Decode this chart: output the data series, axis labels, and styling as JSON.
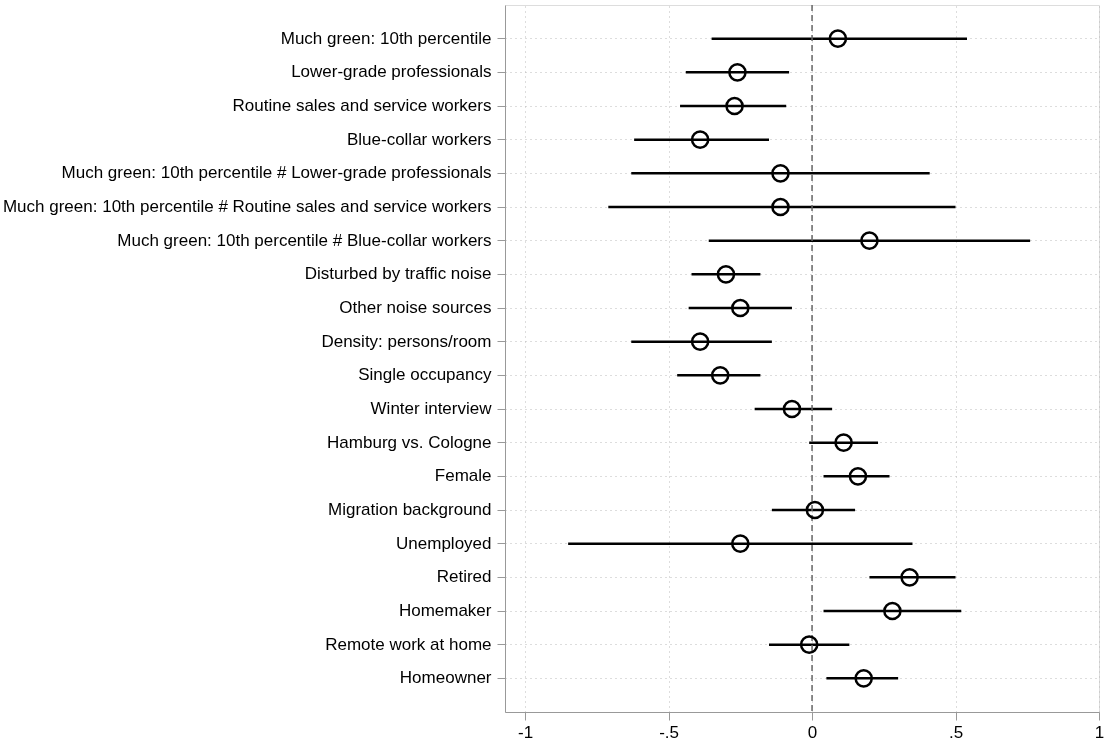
{
  "chart_data": {
    "type": "scatter",
    "orientation": "horizontal",
    "marker": "circle",
    "grid": true,
    "categories": [
      "Much green: 10th percentile",
      "Lower-grade professionals",
      "Routine sales and service workers",
      "Blue-collar workers",
      "Much green: 10th percentile # Lower-grade professionals",
      "Much green: 10th percentile # Routine sales and service workers",
      "Much green: 10th percentile # Blue-collar workers",
      "Disturbed by traffic noise",
      "Other noise sources",
      "Density: persons/room",
      "Single occupancy",
      "Winter interview",
      "Hamburg vs. Cologne",
      "Female",
      "Migration background",
      "Unemployed",
      "Retired",
      "Homemaker",
      "Remote work at home",
      "Homeowner"
    ],
    "values": [
      0.09,
      -0.26,
      -0.27,
      -0.39,
      -0.11,
      -0.11,
      0.2,
      -0.3,
      -0.25,
      -0.39,
      -0.32,
      -0.07,
      0.11,
      0.16,
      0.01,
      -0.25,
      0.34,
      0.28,
      -0.01,
      0.18
    ],
    "errors": [
      [
        -0.35,
        0.54
      ],
      [
        -0.44,
        -0.08
      ],
      [
        -0.46,
        -0.09
      ],
      [
        -0.62,
        -0.15
      ],
      [
        -0.63,
        0.41
      ],
      [
        -0.71,
        0.5
      ],
      [
        -0.36,
        0.76
      ],
      [
        -0.42,
        -0.18
      ],
      [
        -0.43,
        -0.07
      ],
      [
        -0.63,
        -0.14
      ],
      [
        -0.47,
        -0.18
      ],
      [
        -0.2,
        0.07
      ],
      [
        -0.01,
        0.23
      ],
      [
        0.04,
        0.27
      ],
      [
        -0.14,
        0.15
      ],
      [
        -0.85,
        0.35
      ],
      [
        0.2,
        0.5
      ],
      [
        0.04,
        0.52
      ],
      [
        -0.15,
        0.13
      ],
      [
        0.05,
        0.3
      ]
    ],
    "xlim": [
      -1.07,
      1.0
    ],
    "xticks": [
      -1,
      {
        "value": -0.5,
        "label": "-.5"
      },
      0,
      {
        "value": 0.5,
        "label": ".5"
      },
      1
    ],
    "ref_lines": [
      {
        "axis": "x",
        "value": 0,
        "line_style": "dashed",
        "color": "#666666"
      }
    ]
  }
}
